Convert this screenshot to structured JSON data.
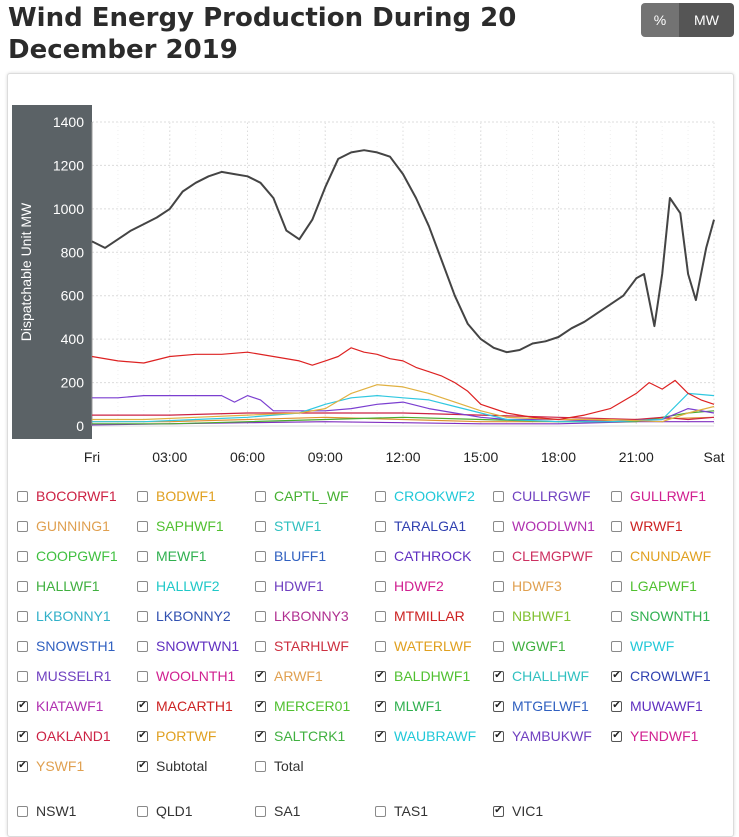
{
  "title": "Wind Energy Production During 20 December 2019",
  "units_toggle": {
    "percent_label": "%",
    "mw_label": "MW"
  },
  "chart_data": {
    "type": "line",
    "ylabel": "Dispatchable Unit MW",
    "ylim": [
      0,
      1400
    ],
    "yticks": [
      0,
      200,
      400,
      600,
      800,
      1000,
      1200,
      1400
    ],
    "xticks": [
      "Fri",
      "03:00",
      "06:00",
      "09:00",
      "12:00",
      "15:00",
      "18:00",
      "21:00",
      "Sat"
    ],
    "x_range_hours": [
      0,
      24
    ],
    "grid": true,
    "series": [
      {
        "name": "Subtotal",
        "color": "#444444",
        "hours": [
          0,
          0.5,
          1,
          1.5,
          2,
          2.5,
          3,
          3.5,
          4,
          4.5,
          5,
          5.5,
          6,
          6.5,
          7,
          7.5,
          8,
          8.5,
          9,
          9.5,
          10,
          10.5,
          11,
          11.5,
          12,
          12.5,
          13,
          13.5,
          14,
          14.5,
          15,
          15.5,
          16,
          16.5,
          17,
          17.5,
          18,
          18.5,
          19,
          19.5,
          20,
          20.5,
          21,
          21.3,
          21.7,
          22,
          22.3,
          22.7,
          23,
          23.3,
          23.7,
          24
        ],
        "values": [
          850,
          820,
          860,
          900,
          930,
          960,
          1000,
          1080,
          1120,
          1150,
          1170,
          1160,
          1150,
          1120,
          1050,
          900,
          860,
          950,
          1100,
          1230,
          1260,
          1270,
          1260,
          1240,
          1160,
          1050,
          920,
          760,
          600,
          470,
          400,
          360,
          340,
          350,
          380,
          390,
          410,
          450,
          480,
          520,
          560,
          600,
          680,
          700,
          460,
          700,
          1050,
          980,
          700,
          580,
          820,
          950
        ]
      },
      {
        "name": "MACARTH1",
        "color": "#dd2222",
        "hours": [
          0,
          1,
          2,
          3,
          4,
          5,
          6,
          7,
          8,
          8.5,
          9,
          9.5,
          10,
          10.5,
          11,
          11.5,
          12,
          12.5,
          13,
          13.5,
          14,
          14.5,
          15,
          16,
          17,
          18,
          19,
          20,
          21,
          21.5,
          22,
          22.5,
          23,
          23.5,
          24
        ],
        "values": [
          320,
          300,
          290,
          320,
          330,
          330,
          340,
          320,
          300,
          280,
          300,
          320,
          360,
          340,
          330,
          310,
          300,
          270,
          250,
          230,
          200,
          160,
          100,
          60,
          40,
          30,
          50,
          80,
          150,
          200,
          170,
          210,
          150,
          120,
          100
        ]
      },
      {
        "name": "MERCER01",
        "color": "#e0b040",
        "hours": [
          0,
          2,
          4,
          6,
          8,
          9,
          10,
          11,
          12,
          13,
          14,
          15,
          16,
          18,
          20,
          22,
          23,
          24
        ],
        "values": [
          30,
          30,
          40,
          50,
          60,
          80,
          150,
          190,
          180,
          150,
          110,
          70,
          40,
          30,
          30,
          20,
          60,
          90
        ]
      },
      {
        "name": "WAUBRAWF",
        "color": "#30c8e0",
        "hours": [
          0,
          2,
          4,
          6,
          8,
          9,
          10,
          11,
          12,
          13,
          14,
          15,
          16,
          18,
          20,
          22,
          23,
          24
        ],
        "values": [
          20,
          20,
          30,
          40,
          60,
          100,
          130,
          140,
          130,
          120,
          90,
          60,
          30,
          20,
          20,
          30,
          150,
          140
        ]
      },
      {
        "name": "MUWAWF1",
        "color": "#7b3fd0",
        "hours": [
          0,
          1,
          2,
          3,
          4,
          5,
          5.5,
          6,
          6.5,
          7,
          8,
          9,
          10,
          11,
          12,
          13,
          14,
          15,
          16,
          18,
          20,
          22,
          23,
          24
        ],
        "values": [
          130,
          130,
          140,
          140,
          140,
          140,
          110,
          140,
          120,
          70,
          70,
          70,
          80,
          100,
          110,
          80,
          60,
          40,
          30,
          30,
          20,
          30,
          80,
          60
        ]
      },
      {
        "name": "OAKLAND1",
        "color": "#cc2244",
        "hours": [
          0,
          3,
          6,
          9,
          12,
          15,
          18,
          21,
          22,
          23,
          24
        ],
        "values": [
          50,
          50,
          60,
          60,
          60,
          50,
          40,
          30,
          40,
          30,
          40
        ]
      },
      {
        "name": "MLWF1",
        "color": "#4aaa30",
        "hours": [
          0,
          3,
          6,
          9,
          12,
          15,
          18,
          21,
          22,
          23,
          24
        ],
        "values": [
          10,
          10,
          20,
          30,
          40,
          30,
          20,
          20,
          40,
          60,
          70
        ]
      },
      {
        "name": "PORTWF",
        "color": "#e09030",
        "hours": [
          0,
          3,
          6,
          9,
          12,
          15,
          18,
          21,
          24
        ],
        "values": [
          20,
          20,
          30,
          40,
          30,
          20,
          20,
          30,
          40
        ]
      },
      {
        "name": "YAMBUKWF",
        "color": "#8030c0",
        "hours": [
          0,
          3,
          6,
          9,
          12,
          15,
          18,
          21,
          24
        ],
        "values": [
          5,
          10,
          15,
          20,
          15,
          10,
          10,
          20,
          20
        ]
      }
    ]
  },
  "unit_checkboxes": [
    {
      "label": "BOCORWF1",
      "checked": false,
      "color": "#cc2244"
    },
    {
      "label": "BODWF1",
      "checked": false,
      "color": "#e0a020"
    },
    {
      "label": "CAPTL_WF",
      "checked": false,
      "color": "#44b030"
    },
    {
      "label": "CROOKWF2",
      "checked": false,
      "color": "#20c8d8"
    },
    {
      "label": "CULLRGWF",
      "checked": false,
      "color": "#7040c0"
    },
    {
      "label": "GULLRWF1",
      "checked": false,
      "color": "#d02090"
    },
    {
      "label": "GUNNING1",
      "checked": false,
      "color": "#e0a050"
    },
    {
      "label": "SAPHWF1",
      "checked": false,
      "color": "#50c030"
    },
    {
      "label": "STWF1",
      "checked": false,
      "color": "#30c0c0"
    },
    {
      "label": "TARALGA1",
      "checked": false,
      "color": "#3040b0"
    },
    {
      "label": "WOODLWN1",
      "checked": false,
      "color": "#b030b0"
    },
    {
      "label": "WRWF1",
      "checked": false,
      "color": "#cc2222"
    },
    {
      "label": "COOPGWF1",
      "checked": false,
      "color": "#40c040"
    },
    {
      "label": "MEWF1",
      "checked": false,
      "color": "#30b050"
    },
    {
      "label": "BLUFF1",
      "checked": false,
      "color": "#3060c0"
    },
    {
      "label": "CATHROCK",
      "checked": false,
      "color": "#6030c0"
    },
    {
      "label": "CLEMGPWF",
      "checked": false,
      "color": "#cc3060"
    },
    {
      "label": "CNUNDAWF",
      "checked": false,
      "color": "#e0a020"
    },
    {
      "label": "HALLWF1",
      "checked": false,
      "color": "#40b040"
    },
    {
      "label": "HALLWF2",
      "checked": false,
      "color": "#20c8c8"
    },
    {
      "label": "HDWF1",
      "checked": false,
      "color": "#7040c0"
    },
    {
      "label": "HDWF2",
      "checked": false,
      "color": "#d02090"
    },
    {
      "label": "HDWF3",
      "checked": false,
      "color": "#e0a050"
    },
    {
      "label": "LGAPWF1",
      "checked": false,
      "color": "#50c030"
    },
    {
      "label": "LKBONNY1",
      "checked": false,
      "color": "#30b0c8"
    },
    {
      "label": "LKBONNY2",
      "checked": false,
      "color": "#3050b0"
    },
    {
      "label": "LKBONNY3",
      "checked": false,
      "color": "#b03090"
    },
    {
      "label": "MTMILLAR",
      "checked": false,
      "color": "#cc2222"
    },
    {
      "label": "NBHWF1",
      "checked": false,
      "color": "#80c030"
    },
    {
      "label": "SNOWNTH1",
      "checked": false,
      "color": "#30b050"
    },
    {
      "label": "SNOWSTH1",
      "checked": false,
      "color": "#3060c0"
    },
    {
      "label": "SNOWTWN1",
      "checked": false,
      "color": "#6030c0"
    },
    {
      "label": "STARHLWF",
      "checked": false,
      "color": "#cc3040"
    },
    {
      "label": "WATERLWF",
      "checked": false,
      "color": "#e0a020"
    },
    {
      "label": "WGWF1",
      "checked": false,
      "color": "#40b040"
    },
    {
      "label": "WPWF",
      "checked": false,
      "color": "#20c8d8"
    },
    {
      "label": "MUSSELR1",
      "checked": false,
      "color": "#7040c0"
    },
    {
      "label": "WOOLNTH1",
      "checked": false,
      "color": "#d02090"
    },
    {
      "label": "ARWF1",
      "checked": true,
      "color": "#e0a050"
    },
    {
      "label": "BALDHWF1",
      "checked": true,
      "color": "#50c030"
    },
    {
      "label": "CHALLHWF",
      "checked": true,
      "color": "#30c0c0"
    },
    {
      "label": "CROWLWF1",
      "checked": true,
      "color": "#3040b0"
    },
    {
      "label": "KIATAWF1",
      "checked": true,
      "color": "#b030b0"
    },
    {
      "label": "MACARTH1",
      "checked": true,
      "color": "#cc2222"
    },
    {
      "label": "MERCER01",
      "checked": true,
      "color": "#50c030"
    },
    {
      "label": "MLWF1",
      "checked": true,
      "color": "#30b050"
    },
    {
      "label": "MTGELWF1",
      "checked": true,
      "color": "#3060c0"
    },
    {
      "label": "MUWAWF1",
      "checked": true,
      "color": "#6030c0"
    },
    {
      "label": "OAKLAND1",
      "checked": true,
      "color": "#cc2244"
    },
    {
      "label": "PORTWF",
      "checked": true,
      "color": "#e0a020"
    },
    {
      "label": "SALTCRK1",
      "checked": true,
      "color": "#40b040"
    },
    {
      "label": "WAUBRAWF",
      "checked": true,
      "color": "#20c8d8"
    },
    {
      "label": "YAMBUKWF",
      "checked": true,
      "color": "#7040c0"
    },
    {
      "label": "YENDWF1",
      "checked": true,
      "color": "#d02090"
    },
    {
      "label": "YSWF1",
      "checked": true,
      "color": "#e0a050"
    },
    {
      "label": "Subtotal",
      "checked": true,
      "color": "#333333"
    },
    {
      "label": "Total",
      "checked": false,
      "color": "#333333"
    }
  ],
  "region_checkboxes": [
    {
      "label": "NSW1",
      "checked": false,
      "color": "#333333"
    },
    {
      "label": "QLD1",
      "checked": false,
      "color": "#333333"
    },
    {
      "label": "SA1",
      "checked": false,
      "color": "#333333"
    },
    {
      "label": "TAS1",
      "checked": false,
      "color": "#333333"
    },
    {
      "label": "VIC1",
      "checked": true,
      "color": "#333333"
    }
  ]
}
